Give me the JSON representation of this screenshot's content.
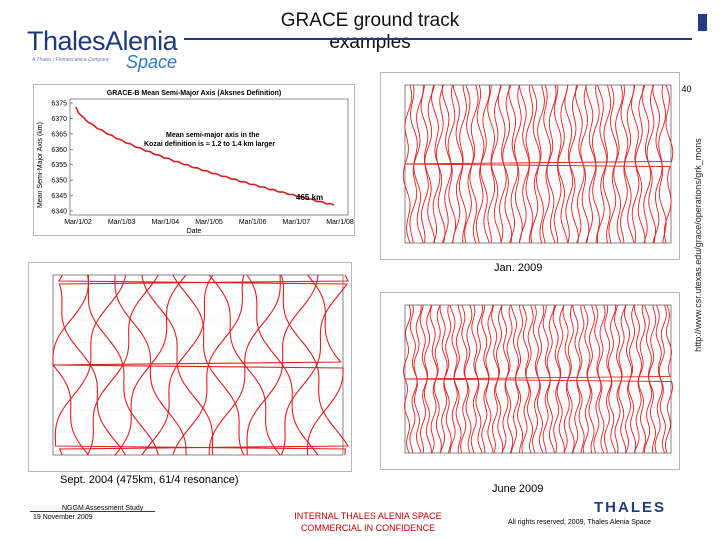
{
  "header": {
    "logo_brand": "ThalesAlenia",
    "logo_tagline": "A Thales / Finmeccanica Company",
    "logo_space": "Space",
    "title": "GRACE ground track examples",
    "page_label": "Page 40"
  },
  "sma_chart": {
    "title": "GRACE-B Mean Semi-Major Axis (Aksnes Definition)",
    "ylabel": "Mean Semi-Major Axis (km)",
    "xlabel": "Date",
    "yticks": [
      "6375",
      "6370",
      "6365",
      "6360",
      "6355",
      "6350",
      "6345",
      "6340"
    ],
    "xticks": [
      "Mar/1/02",
      "Mar/1/03",
      "Mar/1/04",
      "Mar/1/05",
      "Mar/1/06",
      "Mar/1/07",
      "Mar/1/08"
    ],
    "annotation1": "Mean semi-major axis in the",
    "annotation2": "Kozai definition is ≈ 1.2 to 1.4 km larger",
    "end_label": "465 km",
    "series_color": "#d42020"
  },
  "captions": {
    "jan": "Jan. 2009",
    "sept": "Sept. 2004 (475km, 61/4 resonance)",
    "june": "June 2009"
  },
  "url": "http://www.csr.utexas.edu/grace/operations/grk_mons",
  "footer": {
    "left1": "NGGM Assessment Study",
    "left2": "19 November 2009",
    "center1": "INTERNAL THALES ALENIA SPACE",
    "center2": "COMMERCIAL IN CONFIDENCE",
    "right": "All rights reserved, 2009, Thales Alenia Space",
    "brand": "THALES"
  },
  "track_color": "#e02020"
}
